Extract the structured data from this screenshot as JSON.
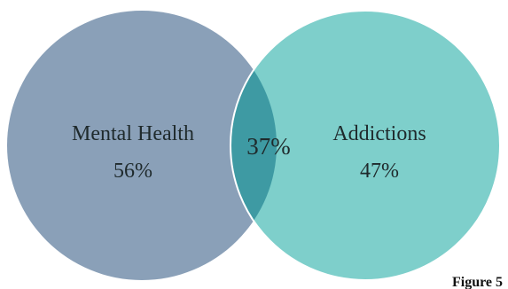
{
  "diagram": {
    "type": "venn",
    "sets": [
      {
        "label": "Mental Health",
        "value": "56%",
        "color": "#8aa0b8"
      },
      {
        "label": "Addictions",
        "value": "47%",
        "color": "#7ecfcb"
      }
    ],
    "intersection": {
      "value": "37%",
      "color": "#3e9aa3"
    },
    "outline_color": "#ffffff"
  },
  "caption": "Figure 5"
}
